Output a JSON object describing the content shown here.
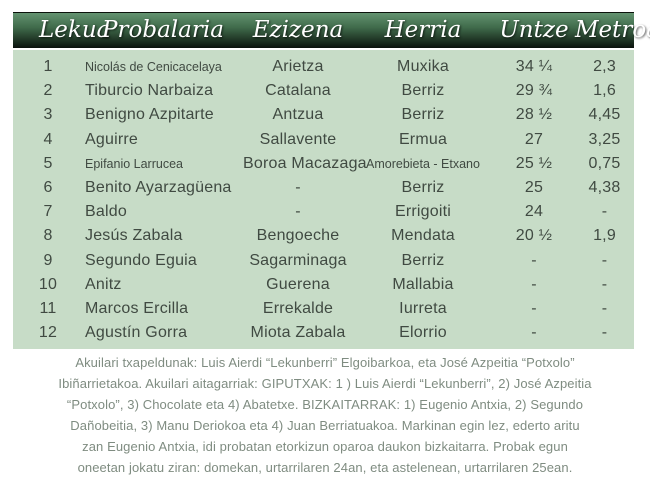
{
  "table": {
    "columns": [
      {
        "key": "lekua",
        "label": "Lekua"
      },
      {
        "key": "probalaria",
        "label": "Probalaria"
      },
      {
        "key": "ezizena",
        "label": "Ezizena"
      },
      {
        "key": "herria",
        "label": "Herria"
      },
      {
        "key": "untze",
        "label": "Untze"
      },
      {
        "key": "metroak",
        "label": "Metroak"
      }
    ],
    "rows": [
      [
        "1",
        "Nicolás de Cenicacelaya",
        "Arietza",
        "Muxika",
        "34 ¼",
        "2,3"
      ],
      [
        "2",
        "Tiburcio Narbaiza",
        "Catalana",
        "Berriz",
        "29 ¾",
        "1,6"
      ],
      [
        "3",
        "Benigno Azpitarte",
        "Antzua",
        "Berriz",
        "28 ½",
        "4,45"
      ],
      [
        "4",
        "Aguirre",
        "Sallavente",
        "Ermua",
        "27",
        "3,25"
      ],
      [
        "5",
        "Epifanio Larrucea",
        "Boroa Macazaga",
        "Amorebieta - Etxano",
        "25 ½",
        "0,75"
      ],
      [
        "6",
        "Benito Ayarzagüena",
        "-",
        "Berriz",
        "25",
        "4,38"
      ],
      [
        "7",
        "Baldo",
        "-",
        "Errigoiti",
        "24",
        "-"
      ],
      [
        "8",
        "Jesús Zabala",
        "Bengoeche",
        "Mendata",
        "20 ½",
        "1,9"
      ],
      [
        "9",
        "Segundo Eguia",
        "Sagarminaga",
        "Berriz",
        "-",
        "-"
      ],
      [
        "10",
        "Anitz",
        "Guerena",
        "Mallabia",
        "-",
        "-"
      ],
      [
        "11",
        "Marcos Ercilla",
        "Errekalde",
        "Iurreta",
        "-",
        "-"
      ],
      [
        "12",
        "Agustín Gorra",
        "Miota Zabala",
        "Elorrio",
        "-",
        "-"
      ]
    ]
  },
  "footer": {
    "lines": [
      "Akuilari txapeldunak: Luis Aierdi “Lekunberri” Elgoibarkoa, eta José Azpeitia “Potxolo”",
      "Ibiñarrietakoa. Akuilari aitagarriak: GIPUTXAK: 1 ) Luis Aierdi “Lekunberri”, 2) José Azpeitia",
      "“Potxolo”, 3) Chocolate eta 4) Abatetxe. BIZKAITARRAK: 1) Eugenio Antxia, 2) Segundo",
      "Dañobeitia, 3) Manu Deriokoa eta 4) Juan Berriatuakoa. Markinan egin lez, ederto aritu",
      "zan Eugenio Antxia, idi probatan etorkizun oparoa daukon bizkaitarra. Probak egun",
      "oneetan jokatu ziran: domekan, urtarrilaren 24an, eta astelenean, urtarrilaren 25ean."
    ]
  },
  "colors": {
    "header_gradient_top": "#639370",
    "header_gradient_mid": "#3f6a4a",
    "header_gradient_bottom": "#0a120c",
    "header_text": "#ffffff",
    "table_body_bg": "#c7dcc7",
    "body_text": "#404a42",
    "footer_text": "#7f8c81"
  }
}
